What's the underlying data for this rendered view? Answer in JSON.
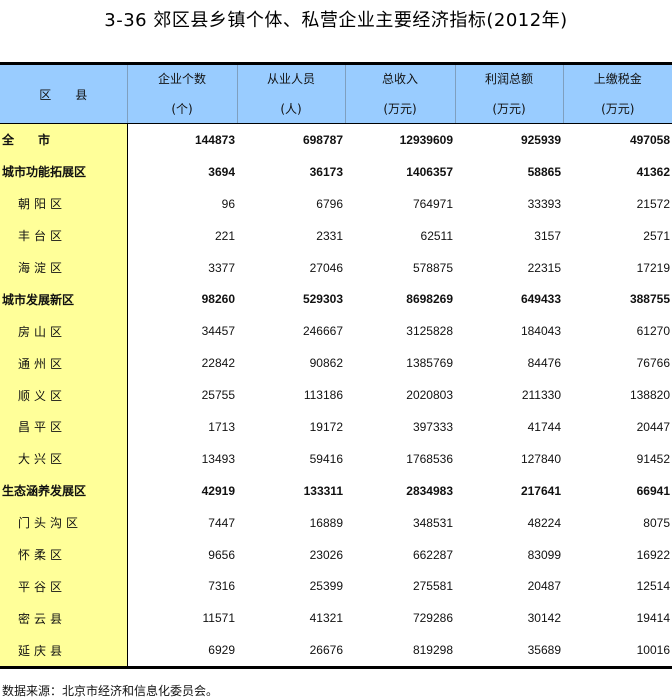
{
  "title": "3-36  郊区县乡镇个体、私营企业主要经济指标(2012年)",
  "columns": [
    {
      "label": "区　　县",
      "unit": ""
    },
    {
      "label": "企业个数",
      "unit": "(个)"
    },
    {
      "label": "从业人员",
      "unit": "(人)"
    },
    {
      "label": "总收入",
      "unit": "(万元)"
    },
    {
      "label": "利润总额",
      "unit": "(万元)"
    },
    {
      "label": "上缴税金",
      "unit": "(万元)"
    }
  ],
  "rows": [
    {
      "name": "全　　市",
      "bold": true,
      "values": [
        "144873",
        "698787",
        "12939609",
        "925939",
        "497058"
      ]
    },
    {
      "name": "城市功能拓展区",
      "bold": true,
      "values": [
        "3694",
        "36173",
        "1406357",
        "58865",
        "41362"
      ]
    },
    {
      "name": "朝阳区",
      "bold": false,
      "values": [
        "96",
        "6796",
        "764971",
        "33393",
        "21572"
      ]
    },
    {
      "name": "丰台区",
      "bold": false,
      "values": [
        "221",
        "2331",
        "62511",
        "3157",
        "2571"
      ]
    },
    {
      "name": "海淀区",
      "bold": false,
      "values": [
        "3377",
        "27046",
        "578875",
        "22315",
        "17219"
      ]
    },
    {
      "name": "城市发展新区",
      "bold": true,
      "values": [
        "98260",
        "529303",
        "8698269",
        "649433",
        "388755"
      ]
    },
    {
      "name": "房山区",
      "bold": false,
      "values": [
        "34457",
        "246667",
        "3125828",
        "184043",
        "61270"
      ]
    },
    {
      "name": "通州区",
      "bold": false,
      "values": [
        "22842",
        "90862",
        "1385769",
        "84476",
        "76766"
      ]
    },
    {
      "name": "顺义区",
      "bold": false,
      "values": [
        "25755",
        "113186",
        "2020803",
        "211330",
        "138820"
      ]
    },
    {
      "name": "昌平区",
      "bold": false,
      "values": [
        "1713",
        "19172",
        "397333",
        "41744",
        "20447"
      ]
    },
    {
      "name": "大兴区",
      "bold": false,
      "values": [
        "13493",
        "59416",
        "1768536",
        "127840",
        "91452"
      ]
    },
    {
      "name": "生态涵养发展区",
      "bold": true,
      "values": [
        "42919",
        "133311",
        "2834983",
        "217641",
        "66941"
      ]
    },
    {
      "name": "门头沟区",
      "bold": false,
      "values": [
        "7447",
        "16889",
        "348531",
        "48224",
        "8075"
      ]
    },
    {
      "name": "怀柔区",
      "bold": false,
      "values": [
        "9656",
        "23026",
        "662287",
        "83099",
        "16922"
      ]
    },
    {
      "name": "平谷区",
      "bold": false,
      "values": [
        "7316",
        "25399",
        "275581",
        "20487",
        "12514"
      ]
    },
    {
      "name": "密云县",
      "bold": false,
      "values": [
        "11571",
        "41321",
        "729286",
        "30142",
        "19414"
      ]
    },
    {
      "name": "延庆县",
      "bold": false,
      "values": [
        "6929",
        "26676",
        "819298",
        "35689",
        "10016"
      ]
    }
  ],
  "footnote": "数据来源：北京市经济和信息化委员会。",
  "colors": {
    "header_bg": "#99ccff",
    "name_col_bg": "#ffff99"
  }
}
